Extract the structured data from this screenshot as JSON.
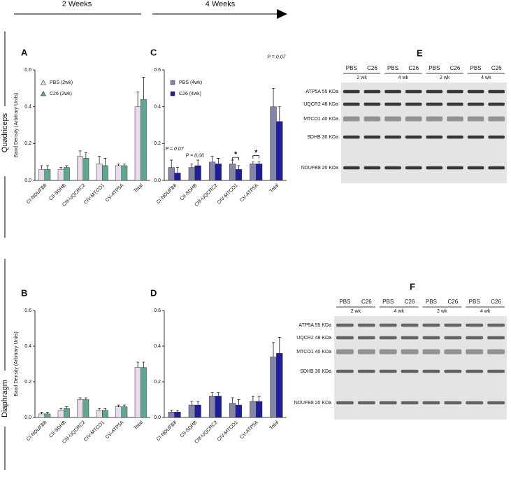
{
  "figure": {
    "timeline": [
      "2 Weeks",
      "4 Weeks"
    ],
    "rows": [
      "Quadriceps",
      "Diaphragm"
    ]
  },
  "chart_data": [
    {
      "type": "bar",
      "panel": "A",
      "y_label": "Band Density (Arbitrary Units)",
      "categories": [
        "CI-NDUFB8",
        "CII-SDHB",
        "CIII-UQCRC2",
        "CIV-MTCO1",
        "CV-ATP5A",
        "Total"
      ],
      "series": [
        {
          "name": "PBS (2wk)",
          "color": "#eadcef",
          "marker": "triangle",
          "values": [
            0.06,
            0.06,
            0.13,
            0.09,
            0.08,
            0.4
          ],
          "errors": [
            0.02,
            0.01,
            0.03,
            0.04,
            0.01,
            0.08
          ]
        },
        {
          "name": "C26 (2wk)",
          "color": "#5fa88f",
          "marker": "triangle",
          "values": [
            0.06,
            0.07,
            0.12,
            0.08,
            0.08,
            0.44
          ],
          "errors": [
            0.02,
            0.01,
            0.03,
            0.04,
            0.01,
            0.12
          ]
        }
      ],
      "ylim": [
        0,
        0.6
      ],
      "yticks": [
        {
          "value": 0,
          "label": "0.0"
        },
        0.2,
        0.4,
        0.6
      ],
      "legend": true
    },
    {
      "type": "bar",
      "panel": "B",
      "y_label": "Band Density (Arbitrary Units)",
      "categories": [
        "CI-NDUFB8",
        "CII-SDHB",
        "CIII-UQCRC2",
        "CIV-MTCO1",
        "CV-ATP5A",
        "Total"
      ],
      "series": [
        {
          "color": "#eadcef",
          "marker": "triangle",
          "values": [
            0.02,
            0.04,
            0.1,
            0.04,
            0.06,
            0.28
          ],
          "errors": [
            0.01,
            0.01,
            0.01,
            0.01,
            0.01,
            0.03
          ]
        },
        {
          "color": "#5fa88f",
          "marker": "triangle",
          "values": [
            0.02,
            0.05,
            0.1,
            0.04,
            0.06,
            0.28
          ],
          "errors": [
            0.01,
            0.01,
            0.01,
            0.01,
            0.01,
            0.03
          ]
        }
      ],
      "ylim": [
        0,
        0.6
      ],
      "yticks": [
        {
          "value": 0,
          "label": "0.0"
        },
        0.2,
        0.4,
        0.6
      ],
      "legend": false
    },
    {
      "type": "bar",
      "panel": "C",
      "categories": [
        "CI-NDUFB8",
        "CII-SDHB",
        "CIII-UQCRC2",
        "CIV-MTCO1",
        "CV-ATP5A",
        "Total"
      ],
      "series": [
        {
          "name": "PBS (4wk)",
          "color": "#8585a8",
          "marker": "square",
          "values": [
            0.07,
            0.07,
            0.1,
            0.09,
            0.09,
            0.4
          ],
          "errors": [
            0.04,
            0.02,
            0.03,
            0.02,
            0.01,
            0.1
          ]
        },
        {
          "name": "C26 (4wk)",
          "color": "#1e1e9c",
          "marker": "square",
          "values": [
            0.04,
            0.08,
            0.09,
            0.06,
            0.09,
            0.32
          ],
          "errors": [
            0.03,
            0.03,
            0.03,
            0.02,
            0.01,
            0.08
          ]
        }
      ],
      "ylim": [
        0,
        0.6
      ],
      "yticks": [
        {
          "value": 0,
          "label": "0.0"
        },
        0.2,
        0.4,
        0.6
      ],
      "legend": true,
      "annotations": [
        {
          "text": "P = 0.07",
          "category": "CI-NDUFB8",
          "y": 0.17
        },
        {
          "text": "P = 0.06",
          "category": "CII-SDHB",
          "y": 0.135
        },
        {
          "text": "*",
          "category": "CIV-MTCO1",
          "y": 0.14,
          "bracket": true
        },
        {
          "text": "*",
          "category": "CV-ATP5A",
          "y": 0.15,
          "bracket": true
        },
        {
          "text": "P = 0.07",
          "category": "Total",
          "y": 0.67
        }
      ]
    },
    {
      "type": "bar",
      "panel": "D",
      "categories": [
        "CI-NDUFB8",
        "CII-SDHB",
        "CIII-UQCRC2",
        "CIV-MTCO1",
        "CV-ATP5A",
        "Total"
      ],
      "series": [
        {
          "color": "#8585a8",
          "marker": "square",
          "values": [
            0.03,
            0.07,
            0.12,
            0.08,
            0.09,
            0.34
          ],
          "errors": [
            0.01,
            0.02,
            0.02,
            0.03,
            0.03,
            0.08
          ]
        },
        {
          "color": "#1e1e9c",
          "marker": "square",
          "values": [
            0.03,
            0.07,
            0.12,
            0.07,
            0.09,
            0.36
          ],
          "errors": [
            0.01,
            0.02,
            0.02,
            0.03,
            0.03,
            0.09
          ]
        }
      ],
      "ylim": [
        0,
        0.6
      ],
      "yticks": [
        {
          "value": 0,
          "label": "0.0"
        },
        0.2,
        0.4,
        0.6
      ],
      "legend": false
    }
  ],
  "blots": [
    {
      "panel": "E",
      "lanes": [
        "PBS",
        "C26",
        "PBS",
        "C26",
        "PBS",
        "C26",
        "PBS",
        "C26"
      ],
      "groups": [
        "2 wk",
        "4 wk",
        "2 wk",
        "4 wk"
      ],
      "bands": [
        "ATP5A 55 KDa",
        "UQCR2 48 KDa",
        "MTCO1 40 KDa",
        "SDHB 30 KDa",
        "NDUFB8 20 KDa"
      ]
    },
    {
      "panel": "F",
      "lanes": [
        "PBS",
        "C26",
        "PBS",
        "C26",
        "PBS",
        "C26",
        "PBS",
        "C26"
      ],
      "groups": [
        "2 wk",
        "4 wk",
        "2 wk",
        "4 wk"
      ],
      "bands": [
        "ATP5A 55 KDa",
        "UQCR2 48 KDa",
        "MTCO1 40 KDa",
        "SDHB 30 KDa",
        "NDUFB8 20 KDa"
      ]
    }
  ]
}
